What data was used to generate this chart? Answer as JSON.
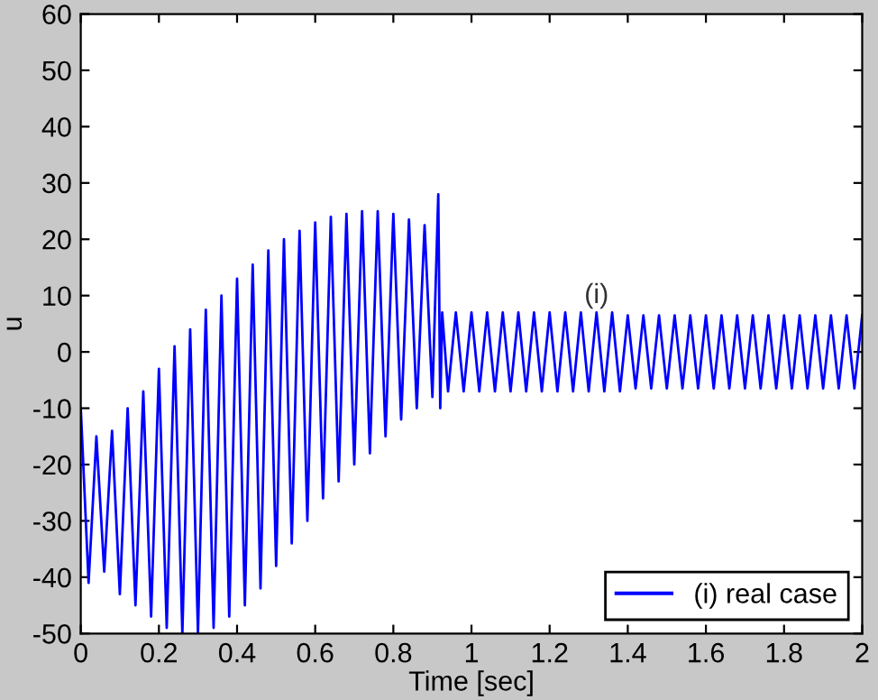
{
  "chart_data": {
    "type": "line",
    "xlabel": "Time [sec]",
    "ylabel": "u",
    "xlim": [
      0,
      2
    ],
    "xticks": [
      0,
      0.2,
      0.4,
      0.6,
      0.8,
      1,
      1.2,
      1.4,
      1.6,
      1.8,
      2
    ],
    "ylim": [
      -50,
      60
    ],
    "yticks": [
      -50,
      -40,
      -30,
      -20,
      -10,
      0,
      10,
      20,
      30,
      40,
      50,
      60
    ],
    "grid": false,
    "legend": "bottom right",
    "marker": "none",
    "line_style": "solid",
    "annotations": [
      "(i)"
    ],
    "series": [
      {
        "name": "(i) real case",
        "color": "#0000ff",
        "x": [
          0.0,
          0.02,
          0.04,
          0.06,
          0.08,
          0.1,
          0.12,
          0.14,
          0.16,
          0.18,
          0.2,
          0.22,
          0.24,
          0.26,
          0.28,
          0.3,
          0.32,
          0.34,
          0.36,
          0.38,
          0.4,
          0.42,
          0.44,
          0.46,
          0.48,
          0.5,
          0.52,
          0.54,
          0.56,
          0.58,
          0.6,
          0.62,
          0.64,
          0.66,
          0.68,
          0.7,
          0.72,
          0.74,
          0.76,
          0.78,
          0.8,
          0.82,
          0.84,
          0.86,
          0.88,
          0.9,
          0.915,
          0.92,
          0.925,
          0.94,
          0.96,
          0.98,
          1.0,
          1.02,
          1.04,
          1.06,
          1.08,
          1.1,
          1.12,
          1.14,
          1.16,
          1.18,
          1.2,
          1.22,
          1.24,
          1.26,
          1.28,
          1.3,
          1.32,
          1.34,
          1.36,
          1.38,
          1.4,
          1.42,
          1.44,
          1.46,
          1.48,
          1.5,
          1.52,
          1.54,
          1.56,
          1.58,
          1.6,
          1.62,
          1.64,
          1.66,
          1.68,
          1.7,
          1.72,
          1.74,
          1.76,
          1.78,
          1.8,
          1.82,
          1.84,
          1.86,
          1.88,
          1.9,
          1.92,
          1.94,
          1.96,
          1.98,
          2.0
        ],
        "values": [
          -10,
          -41,
          -15,
          -39,
          -14,
          -43,
          -10,
          -45,
          -7,
          -47,
          -3,
          -49,
          1,
          -50,
          4,
          -50,
          7.5,
          -49,
          10,
          -47,
          13,
          -45,
          15.5,
          -42,
          18,
          -38,
          20,
          -34,
          21.5,
          -30,
          23,
          -26,
          24,
          -23,
          24.5,
          -20,
          25,
          -18,
          25,
          -15,
          24.5,
          -12,
          23.5,
          -10,
          22.5,
          -8,
          28,
          -10,
          7,
          -7,
          7,
          -7,
          7,
          -7,
          7,
          -7,
          7,
          -7,
          7,
          -7,
          7,
          -7,
          7,
          -7,
          7,
          -7,
          7,
          -7,
          7,
          -7,
          7,
          -7,
          6.5,
          -6.5,
          6.5,
          -6.5,
          6.5,
          -6.5,
          6.5,
          -6.5,
          6.5,
          -6.5,
          6.5,
          -6.5,
          6.5,
          -6.5,
          6.5,
          -6.5,
          6.5,
          -6.5,
          6.5,
          -6.5,
          6.5,
          -6.5,
          6.5,
          -6.5,
          6.5,
          -6.5,
          6.5,
          -6.5,
          6.5,
          -6.5,
          6.5
        ]
      }
    ]
  }
}
